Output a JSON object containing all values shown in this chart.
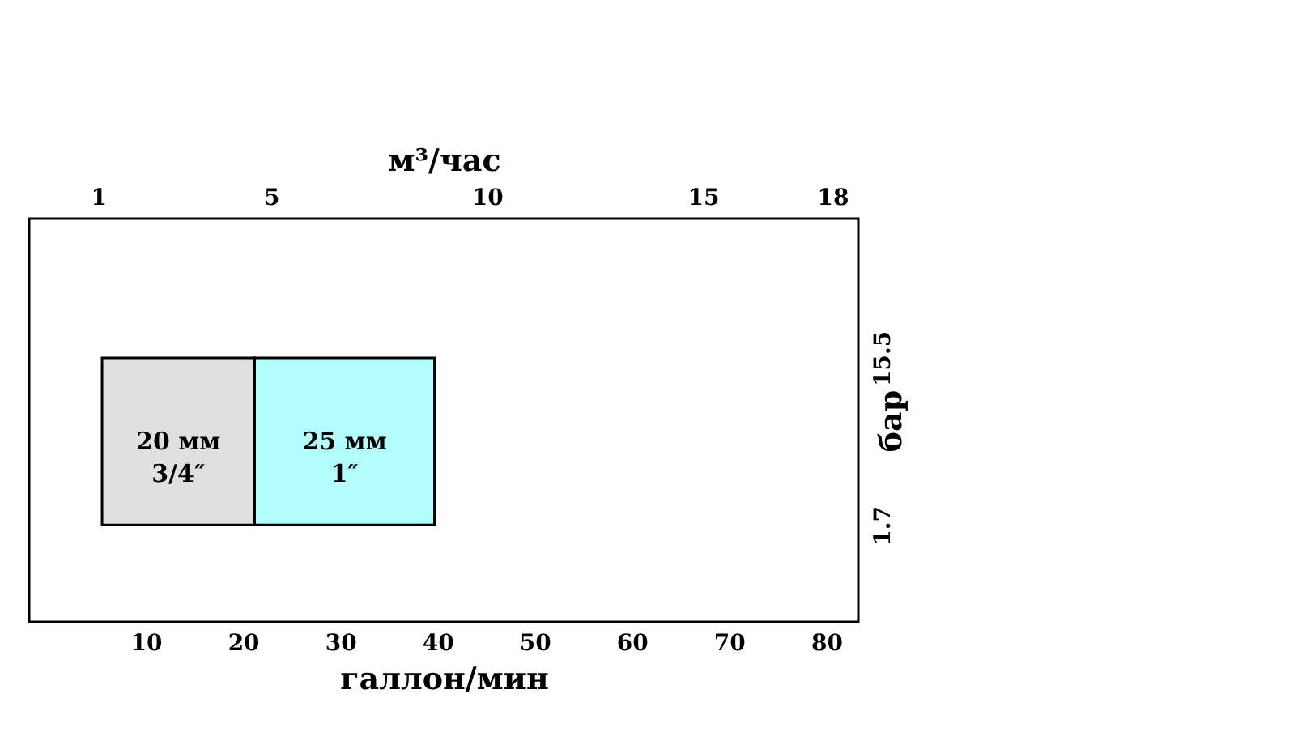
{
  "chart_data": {
    "type": "bar",
    "orientation": "horizontal",
    "x": [
      8.6,
      8.6
    ],
    "base": [
      5.5,
      21.2
    ],
    "values": [
      15.7,
      18.5
    ],
    "colors": [
      "#e0e0e0",
      "#b3ffff"
    ],
    "annotations": [
      "20 мм\n3/4″",
      "25 мм\n1″"
    ],
    "xlabel": "галлон/мин",
    "xlim": [
      -2,
      83.3
    ],
    "xticks": [
      10,
      20,
      30,
      40,
      50,
      60,
      70,
      80
    ],
    "x2label": "м³/час",
    "x2lim": [
      -0.6,
      18.6
    ],
    "x2ticks": [
      1,
      5,
      10,
      15,
      18
    ],
    "ylabel": "бар",
    "ylim": [
      -6.3,
      27
    ],
    "yticks": [
      1.7,
      15.5
    ],
    "grid": false
  }
}
